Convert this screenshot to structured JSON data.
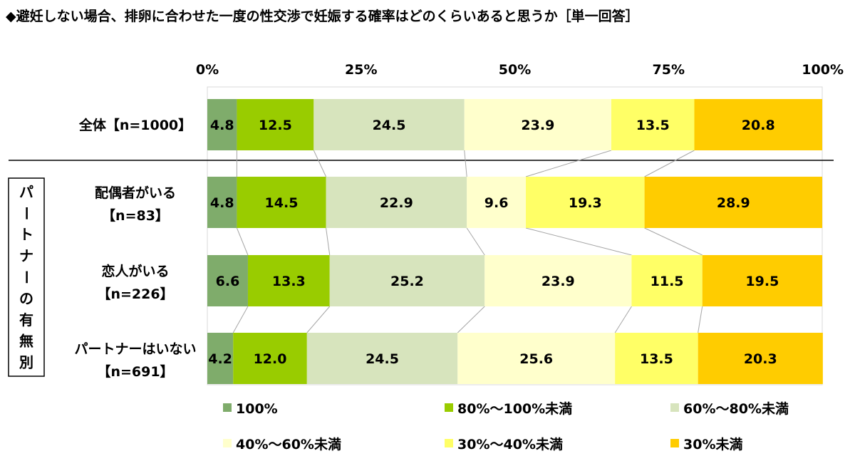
{
  "title": "◆避妊しない場合、排卵に合わせた一度の性交渉で妊娠する確率はどのくらいあると思うか［単一回答］",
  "chart_data": {
    "type": "bar",
    "orientation": "horizontal",
    "stacked": "percent",
    "xlim": [
      0,
      100
    ],
    "x_ticks": [
      "0%",
      "25%",
      "50%",
      "75%",
      "100%"
    ],
    "categories": [
      {
        "lines": [
          "全体【n=1000】"
        ]
      },
      {
        "lines": [
          "配偶者がいる",
          "【n=83】"
        ]
      },
      {
        "lines": [
          "恋人がいる",
          "【n=226】"
        ]
      },
      {
        "lines": [
          "パートナーはいない",
          "【n=691】"
        ]
      }
    ],
    "group_label": "パートナーの有無別",
    "series": [
      {
        "name": "100%",
        "color": "#7fac6b",
        "values": [
          4.8,
          4.8,
          6.6,
          4.2
        ]
      },
      {
        "name": "80%～100%未満",
        "color": "#99cc00",
        "values": [
          12.5,
          14.5,
          13.3,
          12.0
        ]
      },
      {
        "name": "60%～80%未満",
        "color": "#d7e4bd",
        "values": [
          24.5,
          22.9,
          25.2,
          24.5
        ]
      },
      {
        "name": "40%～60%未満",
        "color": "#ffffcc",
        "values": [
          23.9,
          9.6,
          23.9,
          25.6
        ]
      },
      {
        "name": "30%～40%未満",
        "color": "#ffff66",
        "values": [
          13.5,
          19.3,
          11.5,
          13.5
        ]
      },
      {
        "name": "30%未満",
        "color": "#ffcc00",
        "values": [
          20.8,
          28.9,
          19.5,
          20.3
        ]
      }
    ],
    "legend": "bottom",
    "grid": false
  }
}
